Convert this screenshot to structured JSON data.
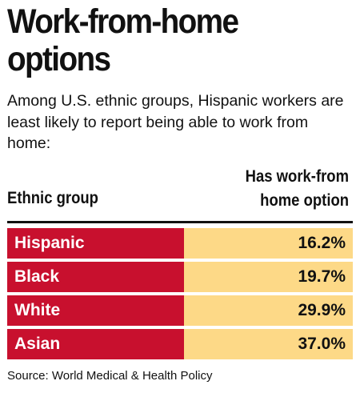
{
  "title_line1": "Work-from-home",
  "title_line2": "options",
  "subtitle": "Among U.S. ethnic groups, Hispanic workers are least likely to report being able to work from home:",
  "col_left": "Ethnic group",
  "col_right_line1": "Has work-from",
  "col_right_line2": "home option",
  "source": "Source: World Medical & Health Policy",
  "colors": {
    "label_bg": "#c8102e",
    "value_bg": "#fdd987"
  },
  "chart_data": {
    "type": "table",
    "categories": [
      "Hispanic",
      "Black",
      "White",
      "Asian"
    ],
    "values": [
      16.2,
      19.7,
      29.9,
      37.0
    ],
    "value_labels": [
      "16.2%",
      "19.7%",
      "29.9%",
      "37.0%"
    ],
    "title": "Work-from-home options",
    "unit": "%"
  }
}
